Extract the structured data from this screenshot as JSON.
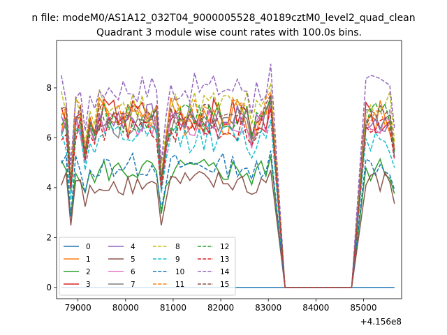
{
  "chart_data": {
    "type": "line",
    "suptitle": "n file: modeM0/AS1A12_032T04_9000005528_40189cztM0_level2_quad_clean",
    "title": "Quadrant 3 module wise count rates with 100.0s bins.",
    "xlabel": "",
    "ylabel": "",
    "x_offset_label": "+4.156e8",
    "xlim": [
      78550,
      85800
    ],
    "ylim": [
      -0.45,
      9.9
    ],
    "x_ticks": [
      79000,
      80000,
      81000,
      82000,
      83000,
      84000,
      85000
    ],
    "x_tick_labels": [
      "79000",
      "80000",
      "81000",
      "82000",
      "83000",
      "84000",
      "85000"
    ],
    "y_ticks": [
      0,
      2,
      4,
      6,
      8
    ],
    "y_tick_labels": [
      "0",
      "2",
      "4",
      "6",
      "8"
    ],
    "grid": false,
    "legend_location": "lower-left",
    "legend_columns": 4,
    "x": [
      78650,
      78750,
      78850,
      78950,
      79050,
      79150,
      79250,
      79350,
      79450,
      79550,
      79650,
      79750,
      79850,
      79950,
      80050,
      80150,
      80250,
      80350,
      80450,
      80550,
      80650,
      80750,
      80850,
      80950,
      81050,
      81150,
      81250,
      81350,
      81450,
      81550,
      81650,
      81750,
      81850,
      81950,
      82050,
      82150,
      82250,
      82350,
      82450,
      82550,
      82650,
      82750,
      82850,
      82950,
      83050,
      83350,
      83450,
      83550,
      83650,
      83750,
      83850,
      83950,
      84050,
      84150,
      84250,
      84350,
      84450,
      84550,
      84650,
      84750,
      85050,
      85150,
      85250,
      85350,
      85450,
      85550,
      85650
    ],
    "series": [
      {
        "name": "0",
        "color": "#1f77b4",
        "dash": "solid",
        "base": 0.0,
        "variation": 0.0
      },
      {
        "name": "1",
        "color": "#ff7f0e",
        "dash": "solid",
        "base": 6.9,
        "variation": 0.8
      },
      {
        "name": "2",
        "color": "#2ca02c",
        "dash": "solid",
        "base": 4.7,
        "variation": 0.5
      },
      {
        "name": "3",
        "color": "#d62728",
        "dash": "solid",
        "base": 6.9,
        "variation": 0.7
      },
      {
        "name": "4",
        "color": "#9467bd",
        "dash": "solid",
        "base": 6.8,
        "variation": 0.6
      },
      {
        "name": "5",
        "color": "#8c564b",
        "dash": "solid",
        "base": 4.2,
        "variation": 0.5
      },
      {
        "name": "6",
        "color": "#e377c2",
        "dash": "solid",
        "base": 6.5,
        "variation": 0.6
      },
      {
        "name": "7",
        "color": "#7f7f7f",
        "dash": "solid",
        "base": 6.6,
        "variation": 0.6
      },
      {
        "name": "8",
        "color": "#bcbd22",
        "dash": "dashed",
        "base": 7.3,
        "variation": 0.7
      },
      {
        "name": "9",
        "color": "#17becf",
        "dash": "dashed",
        "base": 6.0,
        "variation": 0.6
      },
      {
        "name": "10",
        "color": "#1f77b4",
        "dash": "dashed",
        "base": 4.9,
        "variation": 0.5
      },
      {
        "name": "11",
        "color": "#ff7f0e",
        "dash": "dashed",
        "base": 7.0,
        "variation": 0.6
      },
      {
        "name": "12",
        "color": "#2ca02c",
        "dash": "dashed",
        "base": 6.8,
        "variation": 0.6
      },
      {
        "name": "13",
        "color": "#d62728",
        "dash": "dashed",
        "base": 6.4,
        "variation": 0.6
      },
      {
        "name": "14",
        "color": "#9467bd",
        "dash": "dashed",
        "base": 8.0,
        "variation": 0.6
      },
      {
        "name": "15",
        "color": "#8c564b",
        "dash": "dashed",
        "base": 6.9,
        "variation": 0.5
      }
    ]
  }
}
